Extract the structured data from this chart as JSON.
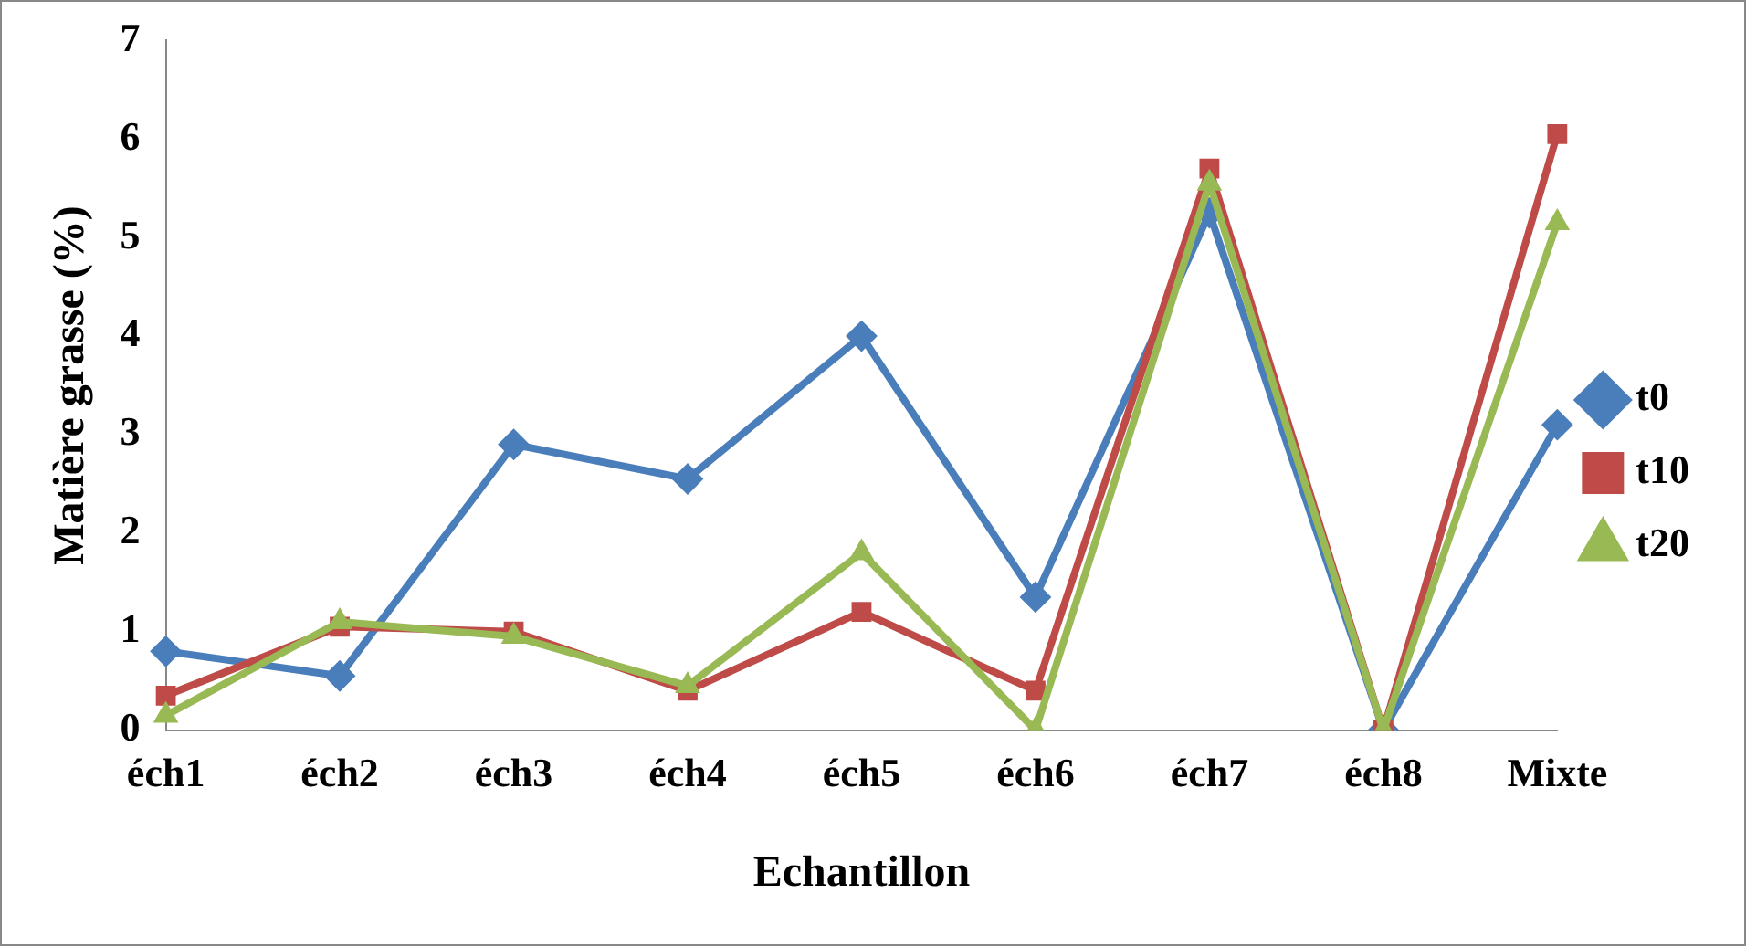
{
  "chart_data": {
    "type": "line",
    "xlabel": "Echantillon",
    "ylabel": "Matière grasse (%)",
    "categories": [
      "éch1",
      "éch2",
      "éch3",
      "éch4",
      "éch5",
      "éch6",
      "éch7",
      "éch8",
      "Mixte"
    ],
    "series": [
      {
        "name": "t0",
        "color": "#4a7ebb",
        "marker": "diamond",
        "values": [
          0.8,
          0.55,
          2.9,
          2.55,
          4.0,
          1.35,
          5.25,
          0,
          3.1
        ]
      },
      {
        "name": "t10",
        "color": "#be4b48",
        "marker": "square",
        "values": [
          0.35,
          1.05,
          1.0,
          0.4,
          1.2,
          0.4,
          5.7,
          0,
          6.05
        ]
      },
      {
        "name": "t20",
        "color": "#98b954",
        "marker": "triangle",
        "values": [
          0.15,
          1.1,
          0.95,
          0.45,
          1.8,
          0,
          5.55,
          0,
          5.15
        ]
      }
    ],
    "ylim": [
      0,
      7
    ],
    "yticks": [
      0,
      1,
      2,
      3,
      4,
      5,
      6,
      7
    ],
    "grid": false,
    "legend": "right",
    "line_style": "solid"
  }
}
